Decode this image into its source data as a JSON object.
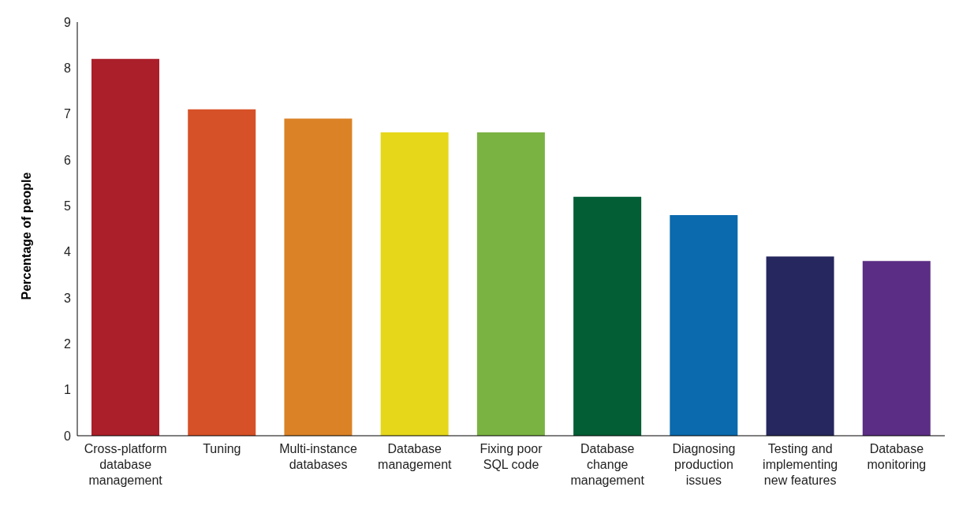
{
  "chart_data": {
    "type": "bar",
    "ylabel": "Percentage of people",
    "categories": [
      "Cross-platform database management",
      "Tuning",
      "Multi-instance databases",
      "Database management",
      "Fixing poor SQL code",
      "Database change management",
      "Diagnosing production issues",
      "Testing and implementing new features",
      "Database monitoring"
    ],
    "values": [
      8.2,
      7.1,
      6.9,
      6.6,
      6.6,
      5.2,
      4.8,
      3.9,
      3.8
    ],
    "colors": [
      "#ab1f2a",
      "#d65127",
      "#db8227",
      "#e6d71b",
      "#7ab342",
      "#035e36",
      "#0a6aad",
      "#26275e",
      "#5b2d84"
    ],
    "ylim": [
      0,
      9
    ],
    "yticks": [
      0,
      1,
      2,
      3,
      4,
      5,
      6,
      7,
      8,
      9
    ],
    "grid": false
  }
}
